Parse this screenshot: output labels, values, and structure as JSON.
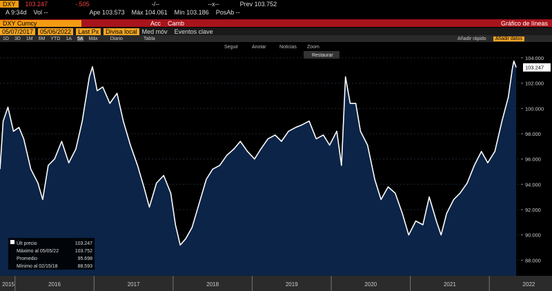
{
  "header": {
    "ticker": "DXY",
    "price": "103.247",
    "change": "-.505",
    "field1": "-/--",
    "field2": "--x--",
    "prev": "Prev 103.752",
    "time": "A 9:34d",
    "vol": "Vol --",
    "open": "Ape 103.573",
    "high": "Máx 104.061",
    "low": "Mín 103.186",
    "pos": "PosAb --"
  },
  "security_bar": {
    "security": "DXY Curncy",
    "actions": "Acc",
    "change": "Camb",
    "chart_type": "Gráfico de líneas"
  },
  "settings_bar": {
    "start": "05/07/2017",
    "end": "05/06/2022",
    "field": "Last Px",
    "currency": "Divisa local",
    "moving_avg": "Med móv",
    "events": "Eventos clave"
  },
  "range_bar": {
    "ranges": [
      "1D",
      "3D",
      "1M",
      "6M",
      "YTD",
      "1A",
      "5A",
      "Máx"
    ],
    "frequency": "Diario",
    "table": "Tabla",
    "quick_add": "Añadir rápido",
    "add_data": "Añadir datos"
  },
  "chart_tools": [
    "Seguir",
    "Anotar",
    "Noticias",
    "Zoom"
  ],
  "restore": "Restaurar",
  "chart_data": {
    "type": "line",
    "x": [
      2015.81,
      2015.85,
      2015.91,
      2015.98,
      2016.05,
      2016.11,
      2016.2,
      2016.29,
      2016.35,
      2016.42,
      2016.5,
      2016.59,
      2016.68,
      2016.77,
      2016.85,
      2016.94,
      2016.98,
      2017.04,
      2017.11,
      2017.2,
      2017.29,
      2017.37,
      2017.46,
      2017.55,
      2017.63,
      2017.7,
      2017.79,
      2017.88,
      2017.97,
      2018.03,
      2018.09,
      2018.16,
      2018.24,
      2018.33,
      2018.42,
      2018.5,
      2018.59,
      2018.68,
      2018.77,
      2018.85,
      2018.94,
      2019.03,
      2019.11,
      2019.2,
      2019.29,
      2019.37,
      2019.46,
      2019.55,
      2019.63,
      2019.72,
      2019.81,
      2019.9,
      2019.98,
      2020.07,
      2020.13,
      2020.18,
      2020.24,
      2020.31,
      2020.37,
      2020.46,
      2020.55,
      2020.63,
      2020.72,
      2020.81,
      2020.9,
      2020.98,
      2021.07,
      2021.16,
      2021.24,
      2021.33,
      2021.39,
      2021.46,
      2021.55,
      2021.63,
      2021.72,
      2021.81,
      2021.9,
      2021.98,
      2022.07,
      2022.16,
      2022.24,
      2022.29,
      2022.31,
      2022.34
    ],
    "series": [
      {
        "color": "#ffffff",
        "fill": "#0b2447",
        "values": [
          95.2,
          99.0,
          100.1,
          98.2,
          98.5,
          97.6,
          95.2,
          94.1,
          92.8,
          95.5,
          96.0,
          97.4,
          95.7,
          96.8,
          99.0,
          102.5,
          103.3,
          101.4,
          101.7,
          100.4,
          101.2,
          99.0,
          97.1,
          95.5,
          93.8,
          92.2,
          94.1,
          94.7,
          93.3,
          90.8,
          89.2,
          89.7,
          90.6,
          92.5,
          94.4,
          95.2,
          95.5,
          96.3,
          96.8,
          97.4,
          96.6,
          96.0,
          96.8,
          97.6,
          97.9,
          97.4,
          98.2,
          98.5,
          98.7,
          99.0,
          97.6,
          97.9,
          97.1,
          98.2,
          95.5,
          102.5,
          100.4,
          100.4,
          98.2,
          97.1,
          94.4,
          92.8,
          93.8,
          93.3,
          91.7,
          90.0,
          91.1,
          90.8,
          93.0,
          91.1,
          90.0,
          91.7,
          92.8,
          93.3,
          94.1,
          95.5,
          96.6,
          95.7,
          96.6,
          99.0,
          100.9,
          103.1,
          103.752,
          103.247
        ]
      }
    ],
    "xlim": [
      2015.81,
      2022.4
    ],
    "xticks": [
      {
        "value": 2015,
        "label": "2015"
      },
      {
        "value": 2016,
        "label": "2016"
      },
      {
        "value": 2017,
        "label": "2017"
      },
      {
        "value": 2018,
        "label": "2018"
      },
      {
        "value": 2019,
        "label": "2019"
      },
      {
        "value": 2020,
        "label": "2020"
      },
      {
        "value": 2021,
        "label": "2021"
      },
      {
        "value": 2022,
        "label": "2022"
      }
    ],
    "ylim": [
      87.2,
      105.25
    ],
    "yticks": [
      {
        "value": 88,
        "label": "88.000"
      },
      {
        "value": 90,
        "label": "90.000"
      },
      {
        "value": 92,
        "label": "92.000"
      },
      {
        "value": 94,
        "label": "94.000"
      },
      {
        "value": 96,
        "label": "96.000"
      },
      {
        "value": 98,
        "label": "98.000"
      },
      {
        "value": 100,
        "label": "100.000"
      },
      {
        "value": 102,
        "label": "102.000"
      },
      {
        "value": 104,
        "label": "104.000"
      }
    ],
    "last_price": 103.247,
    "legend": [
      {
        "label": "Últ precio",
        "value": 103.247
      },
      {
        "label": "Máximo al 05/05/22",
        "value": 103.752
      },
      {
        "label": "Promedio",
        "value": 95.698
      },
      {
        "label": "Mínimo al 02/15/18",
        "value": 88.593
      }
    ]
  }
}
